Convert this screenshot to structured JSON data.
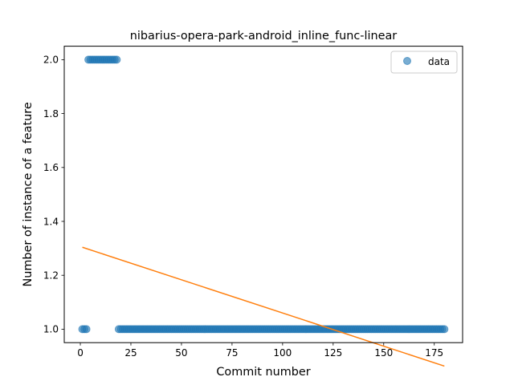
{
  "chart_data": {
    "type": "scatter",
    "title": "nibarius-opera-park-android_inline_func-linear",
    "xlabel": "Commit number",
    "ylabel": "Number of instance of a feature",
    "xlim": [
      -7.95,
      189
    ],
    "ylim": [
      0.95,
      2.05
    ],
    "xticks": [
      0,
      25,
      50,
      75,
      100,
      125,
      150,
      175
    ],
    "yticks": [
      1.0,
      1.2,
      1.4,
      1.6,
      1.8,
      2.0
    ],
    "xtick_labels": [
      "0",
      "25",
      "50",
      "75",
      "100",
      "125",
      "150",
      "175"
    ],
    "ytick_labels": [
      "1.0",
      "1.2",
      "1.4",
      "1.6",
      "1.8",
      "2.0"
    ],
    "grid": false,
    "legend": {
      "placement": "top-right",
      "entries": [
        "data"
      ]
    },
    "series": [
      {
        "name": "data",
        "kind": "scatter",
        "color": "#1f77b4",
        "runs": [
          {
            "x_start": 1,
            "x_end": 3,
            "y": 1.0
          },
          {
            "x_start": 4,
            "x_end": 18,
            "y": 2.0
          },
          {
            "x_start": 19,
            "x_end": 180,
            "y": 1.0
          }
        ]
      },
      {
        "kind": "line",
        "color": "#ff7f0e",
        "x": [
          1,
          180
        ],
        "y": [
          1.304,
          0.863
        ]
      }
    ]
  }
}
